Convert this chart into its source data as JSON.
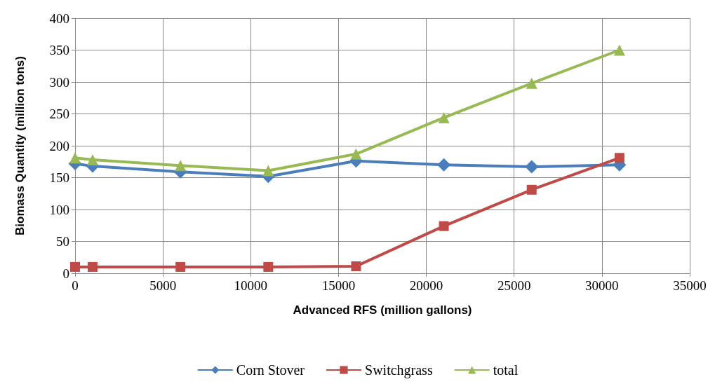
{
  "chart_data": {
    "type": "line",
    "xlabel": "Advanced RFS (million gallons)",
    "ylabel": "Biomass Quantity (million tons)",
    "x": [
      0,
      1000,
      6000,
      11000,
      16000,
      21000,
      26000,
      31000
    ],
    "series": [
      {
        "name": "Corn Stover",
        "color": "#4a7ebb",
        "marker": "diamond",
        "values": [
          172,
          168,
          159,
          152,
          176,
          170,
          167,
          170
        ]
      },
      {
        "name": "Switchgrass",
        "color": "#be4b48",
        "marker": "square",
        "values": [
          10,
          10,
          10,
          10,
          11,
          74,
          131,
          181
        ]
      },
      {
        "name": "total",
        "color": "#98b954",
        "marker": "triangle",
        "values": [
          181,
          178,
          169,
          161,
          187,
          244,
          298,
          350
        ]
      }
    ],
    "xlim": [
      0,
      35000
    ],
    "xticks": [
      0,
      5000,
      10000,
      15000,
      20000,
      25000,
      30000,
      35000
    ],
    "ylim": [
      0,
      400
    ],
    "yticks": [
      0,
      50,
      100,
      150,
      200,
      250,
      300,
      350,
      400
    ],
    "grid": true,
    "legend": "bottom"
  }
}
